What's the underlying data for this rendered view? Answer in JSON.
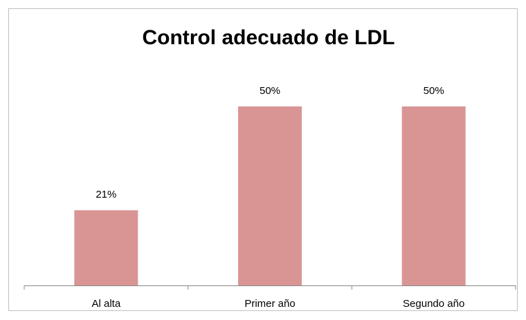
{
  "chart_data": {
    "type": "bar",
    "title": "Control adecuado de LDL",
    "categories": [
      "Al alta",
      "Primer año",
      "Segundo año"
    ],
    "values": [
      21,
      50,
      50
    ],
    "value_labels": [
      "21%",
      "50%",
      "50%"
    ],
    "color": "#d99594"
  }
}
